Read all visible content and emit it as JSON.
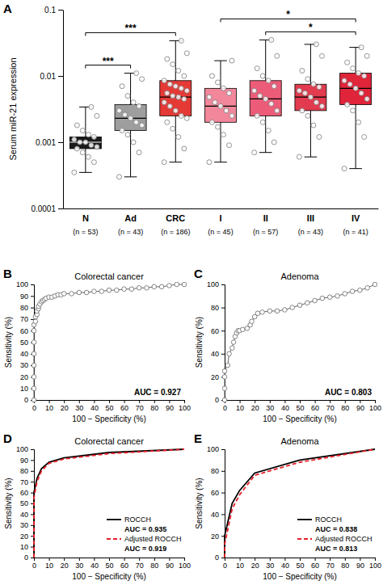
{
  "chart_data": [
    {
      "type": "box",
      "panel_label": "A",
      "y_label": "Serum miR-21 expression",
      "categories": [
        "N",
        "Ad",
        "CRC",
        "I",
        "II",
        "III",
        "IV"
      ],
      "category_sublabels": [
        "(n = 53)",
        "(n = 43)",
        "(n = 186)",
        "(n = 45)",
        "(n = 57)",
        "(n = 43)",
        "(n = 41)"
      ],
      "colors": [
        "#1a1a1a",
        "#9e9e9e",
        "#e53935",
        "#f2879b",
        "#ec5c78",
        "#e23a4e",
        "#e0243a"
      ],
      "log": "y",
      "ylim": [
        0.0001,
        0.1
      ],
      "yticks": [
        0.0001,
        0.001,
        0.01,
        0.1
      ],
      "boxes": [
        {
          "min": 0.00035,
          "q1": 0.0008,
          "median": 0.001,
          "q3": 0.0012,
          "max": 0.0034
        },
        {
          "min": 0.0003,
          "q1": 0.0015,
          "median": 0.0023,
          "q3": 0.0037,
          "max": 0.011
        },
        {
          "min": 0.0005,
          "q1": 0.0025,
          "median": 0.0048,
          "q3": 0.0085,
          "max": 0.034
        },
        {
          "min": 0.0005,
          "q1": 0.002,
          "median": 0.0035,
          "q3": 0.0065,
          "max": 0.017
        },
        {
          "min": 0.0007,
          "q1": 0.0025,
          "median": 0.0045,
          "q3": 0.0085,
          "max": 0.035
        },
        {
          "min": 0.0006,
          "q1": 0.003,
          "median": 0.0048,
          "q3": 0.0075,
          "max": 0.03
        },
        {
          "min": 0.0004,
          "q1": 0.0037,
          "median": 0.0065,
          "q3": 0.011,
          "max": 0.027
        }
      ],
      "points": [
        [
          0.00035,
          0.0005,
          0.0006,
          0.0007,
          0.0008,
          0.00085,
          0.0009,
          0.001,
          0.001,
          0.0011,
          0.0012,
          0.0013,
          0.0015,
          0.0018,
          0.0025,
          0.0034
        ],
        [
          0.0003,
          0.0007,
          0.001,
          0.0013,
          0.0015,
          0.0018,
          0.002,
          0.0023,
          0.0026,
          0.003,
          0.0035,
          0.004,
          0.005,
          0.007,
          0.009,
          0.011
        ],
        [
          0.0005,
          0.0008,
          0.0012,
          0.0016,
          0.002,
          0.0023,
          0.0025,
          0.003,
          0.0035,
          0.004,
          0.0045,
          0.0048,
          0.005,
          0.0055,
          0.006,
          0.0065,
          0.007,
          0.0075,
          0.0085,
          0.01,
          0.012,
          0.015,
          0.018,
          0.022,
          0.034
        ],
        [
          0.0005,
          0.0009,
          0.0013,
          0.0017,
          0.002,
          0.0025,
          0.003,
          0.0035,
          0.004,
          0.0048,
          0.0055,
          0.0065,
          0.008,
          0.01,
          0.017
        ],
        [
          0.0007,
          0.001,
          0.0015,
          0.002,
          0.0025,
          0.003,
          0.0038,
          0.0045,
          0.005,
          0.006,
          0.007,
          0.0085,
          0.01,
          0.013,
          0.02,
          0.035
        ],
        [
          0.0006,
          0.0012,
          0.0018,
          0.0025,
          0.003,
          0.0035,
          0.004,
          0.0048,
          0.0055,
          0.006,
          0.0068,
          0.0075,
          0.009,
          0.012,
          0.02,
          0.03
        ],
        [
          0.0004,
          0.0012,
          0.002,
          0.003,
          0.0037,
          0.0045,
          0.0055,
          0.0065,
          0.0075,
          0.0085,
          0.01,
          0.011,
          0.013,
          0.016,
          0.02,
          0.027
        ]
      ],
      "annotations": [
        {
          "from": 0,
          "to": 1,
          "text": "***"
        },
        {
          "from": 0,
          "to": 2,
          "text": "***"
        },
        {
          "from": 4,
          "to": 6,
          "text": "*"
        },
        {
          "from": 3,
          "to": 6,
          "text": "*"
        }
      ]
    },
    {
      "type": "line",
      "panel_label": "B",
      "title": "Colorectal cancer",
      "x_label": "100 − Specificity (%)",
      "y_label": "Sensitivity (%)",
      "xlim": [
        0,
        100
      ],
      "xticks": [
        0,
        10,
        20,
        30,
        40,
        50,
        60,
        70,
        80,
        90,
        100
      ],
      "ylim": [
        0,
        100
      ],
      "yticks": [
        0,
        10,
        20,
        30,
        40,
        50,
        60,
        70,
        80,
        90,
        100
      ],
      "annotations": [
        "AUC = 0.927"
      ],
      "series": [
        {
          "color": "#666666",
          "marker": "circle",
          "line_style": "solid",
          "x": [
            0,
            0,
            0,
            0,
            0,
            0,
            0,
            0,
            1,
            1,
            2,
            2,
            3,
            3,
            4,
            5,
            6,
            7,
            8,
            10,
            12,
            14,
            16,
            18,
            20,
            25,
            30,
            35,
            40,
            45,
            50,
            55,
            60,
            65,
            70,
            75,
            80,
            85,
            90,
            95,
            100
          ],
          "values": [
            0,
            10,
            20,
            30,
            40,
            50,
            60,
            65,
            68,
            72,
            74,
            77,
            79,
            81,
            83,
            85,
            86,
            87,
            88,
            89,
            89,
            90,
            91,
            91,
            92,
            92,
            93,
            93,
            94,
            94,
            95,
            95,
            96,
            96,
            97,
            97,
            98,
            98,
            99,
            100,
            100
          ]
        }
      ]
    },
    {
      "type": "line",
      "panel_label": "C",
      "title": "Adenoma",
      "x_label": "100 − Specificity (%)",
      "y_label": "Sensitivity (%)",
      "xlim": [
        0,
        100
      ],
      "xticks": [
        0,
        10,
        20,
        30,
        40,
        50,
        60,
        70,
        80,
        90,
        100
      ],
      "ylim": [
        0,
        100
      ],
      "yticks": [
        0,
        20,
        40,
        60,
        80,
        100
      ],
      "annotations": [
        "AUC = 0.803"
      ],
      "series": [
        {
          "color": "#666666",
          "marker": "circle",
          "line_style": "solid",
          "x": [
            0,
            0,
            0,
            0,
            2,
            3,
            5,
            6,
            7,
            8,
            9,
            10,
            12,
            15,
            17,
            18,
            20,
            22,
            25,
            30,
            35,
            40,
            45,
            50,
            55,
            60,
            65,
            70,
            75,
            80,
            85,
            90,
            95,
            100
          ],
          "values": [
            0,
            10,
            20,
            25,
            30,
            40,
            45,
            50,
            55,
            58,
            60,
            60,
            61,
            62,
            65,
            68,
            72,
            75,
            76,
            77,
            77,
            78,
            80,
            82,
            84,
            86,
            88,
            89,
            90,
            92,
            94,
            95,
            97,
            100
          ]
        }
      ]
    },
    {
      "type": "line",
      "panel_label": "D",
      "title": "Colorectal cancer",
      "x_label": "100 − Specificity (%)",
      "y_label": "Sensitivity (%)",
      "xlim": [
        0,
        100
      ],
      "xticks": [
        0,
        10,
        20,
        30,
        40,
        50,
        60,
        70,
        80,
        90,
        100
      ],
      "ylim": [
        0,
        100
      ],
      "yticks": [
        0,
        10,
        20,
        30,
        40,
        50,
        60,
        70,
        80,
        90,
        100
      ],
      "legend": "bottom-right",
      "annotations": [
        "AUC = 0.935",
        "AUC = 0.919"
      ],
      "series": [
        {
          "name": "ROCCH",
          "color": "#000000",
          "line_style": "solid",
          "x": [
            0,
            0,
            2,
            5,
            10,
            20,
            50,
            100
          ],
          "values": [
            0,
            60,
            73,
            82,
            88,
            92,
            97,
            100
          ]
        },
        {
          "name": "Adjusted ROCCH",
          "color": "#e8202a",
          "line_style": "dashed",
          "x": [
            0,
            0,
            2,
            5,
            10,
            20,
            50,
            100
          ],
          "values": [
            0,
            55,
            70,
            80,
            87,
            91,
            96,
            100
          ]
        }
      ]
    },
    {
      "type": "line",
      "panel_label": "E",
      "title": "Adenoma",
      "x_label": "100 − Specificity (%)",
      "y_label": "Sensitivity (%)",
      "xlim": [
        0,
        100
      ],
      "xticks": [
        0,
        10,
        20,
        30,
        40,
        50,
        60,
        70,
        80,
        90,
        100
      ],
      "ylim": [
        0,
        100
      ],
      "yticks": [
        0,
        20,
        40,
        60,
        80,
        100
      ],
      "legend": "bottom-right",
      "annotations": [
        "AUC = 0.838",
        "AUC = 0.813"
      ],
      "series": [
        {
          "name": "ROCCH",
          "color": "#000000",
          "line_style": "solid",
          "x": [
            0,
            0,
            5,
            10,
            20,
            50,
            100
          ],
          "values": [
            0,
            20,
            50,
            62,
            78,
            90,
            100
          ]
        },
        {
          "name": "Adjusted ROCCH",
          "color": "#e8202a",
          "line_style": "dashed",
          "x": [
            0,
            0,
            5,
            10,
            20,
            50,
            100
          ],
          "values": [
            0,
            12,
            45,
            58,
            76,
            88,
            100
          ]
        }
      ]
    }
  ]
}
